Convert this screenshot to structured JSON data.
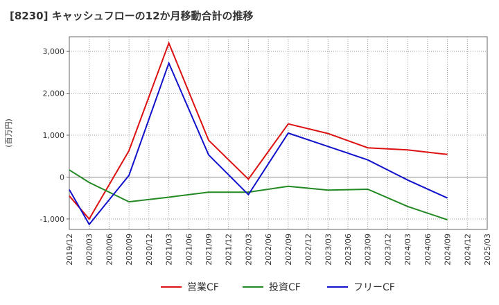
{
  "chart_data": {
    "type": "line",
    "title": "[8230]  キャッシュフローの12か月移動合計の推移",
    "ylabel": "(百万円)",
    "xlabel": "",
    "ylim": [
      -1250,
      3350
    ],
    "yticks": [
      -1000,
      0,
      1000,
      2000,
      3000
    ],
    "ytick_labels": [
      "-1,000",
      "0",
      "1,000",
      "2,000",
      "3,000"
    ],
    "x_ticks": [
      "2019/12",
      "2020/03",
      "2020/06",
      "2020/09",
      "2020/12",
      "2021/03",
      "2021/06",
      "2021/09",
      "2021/12",
      "2022/03",
      "2022/06",
      "2022/09",
      "2022/12",
      "2023/03",
      "2023/06",
      "2023/09",
      "2023/12",
      "2024/03",
      "2024/06",
      "2024/09",
      "2024/12",
      "2025/03"
    ],
    "grid": true,
    "legend_position": "bottom",
    "series": [
      {
        "name": "営業CF",
        "color": "#dd1111",
        "x": [
          "2019/12",
          "2020/03",
          "2020/09",
          "2021/03",
          "2021/09",
          "2022/03",
          "2022/09",
          "2023/03",
          "2023/09",
          "2024/03",
          "2024/09"
        ],
        "values": [
          -450,
          -1000,
          630,
          3200,
          880,
          -50,
          1270,
          1040,
          700,
          650,
          540
        ]
      },
      {
        "name": "投資CF",
        "color": "#228822",
        "x": [
          "2019/12",
          "2020/03",
          "2020/09",
          "2021/03",
          "2021/09",
          "2022/03",
          "2022/09",
          "2023/03",
          "2023/09",
          "2024/03",
          "2024/09"
        ],
        "values": [
          170,
          -130,
          -590,
          -480,
          -360,
          -360,
          -220,
          -310,
          -290,
          -700,
          -1020
        ]
      },
      {
        "name": "フリーCF",
        "color": "#1111cc",
        "x": [
          "2019/12",
          "2020/03",
          "2020/09",
          "2021/03",
          "2021/09",
          "2022/03",
          "2022/09",
          "2023/03",
          "2023/09",
          "2024/03",
          "2024/09"
        ],
        "values": [
          -300,
          -1130,
          40,
          2720,
          530,
          -420,
          1050,
          730,
          410,
          -70,
          -500
        ]
      }
    ]
  }
}
